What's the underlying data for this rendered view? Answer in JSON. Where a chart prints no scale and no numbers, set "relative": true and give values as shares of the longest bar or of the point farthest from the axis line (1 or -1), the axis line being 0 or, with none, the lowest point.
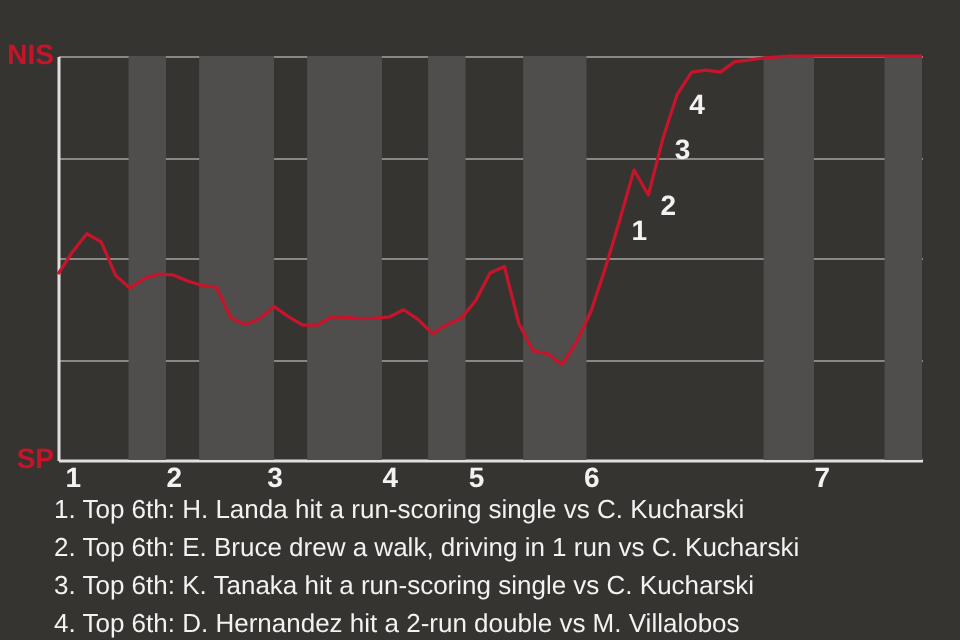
{
  "chart_data": {
    "type": "line",
    "relative": true,
    "categories": [
      null,
      "1",
      null,
      null,
      null,
      null,
      null,
      null,
      "2",
      null,
      null,
      null,
      null,
      null,
      null,
      "3",
      null,
      null,
      null,
      null,
      null,
      null,
      null,
      "4",
      null,
      null,
      null,
      null,
      null,
      "5",
      null,
      null,
      null,
      null,
      null,
      null,
      null,
      "6",
      null,
      null,
      null,
      null,
      null,
      null,
      null,
      null,
      null,
      null,
      null,
      null,
      null,
      null,
      null,
      "7",
      null,
      null,
      null,
      null,
      null,
      null,
      null
    ],
    "series": [
      {
        "color": "#c8142a",
        "values": [
          0.46,
          0.515,
          0.56,
          0.54,
          0.457,
          0.425,
          0.45,
          0.46,
          0.458,
          0.443,
          0.432,
          0.428,
          0.352,
          0.335,
          0.35,
          0.38,
          0.355,
          0.334,
          0.334,
          0.354,
          0.353,
          0.35,
          0.351,
          0.354,
          0.372,
          0.348,
          0.313,
          0.335,
          0.351,
          0.394,
          0.463,
          0.479,
          0.338,
          0.27,
          0.263,
          0.236,
          0.291,
          0.367,
          0.474,
          0.593,
          0.718,
          0.656,
          0.795,
          0.905,
          0.96,
          0.965,
          0.96,
          0.986,
          0.99,
          0.995,
          0.998,
          1,
          1,
          1,
          1,
          1,
          1,
          1,
          1,
          1,
          1
        ]
      }
    ],
    "grid": "y",
    "marker": "none",
    "line_style": "solid",
    "annotations": [
      "NIS",
      "SP",
      "1",
      "2",
      "3",
      "4",
      "1. Top 6th: H. Landa hit a run-scoring single vs C. Kucharski",
      "2. Top 6th: E. Bruce drew a walk, driving in 1 run vs C. Kucharski",
      "3. Top 6th: K. Tanaka hit a run-scoring single vs C. Kucharski",
      "4. Top 6th: D. Hernandez hit a 2-run double vs M. Villalobos"
    ]
  }
}
